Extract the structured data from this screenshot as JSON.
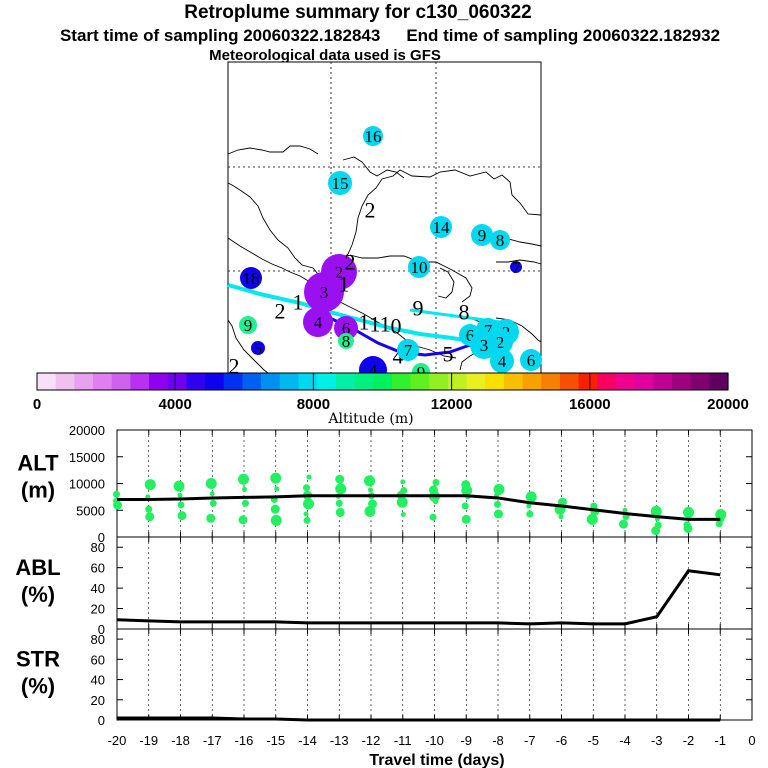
{
  "header": {
    "title": "Retroplume summary for c130_060322",
    "start_label": "Start time of sampling 20060322.182843",
    "end_label": "End time of sampling 20060322.182932",
    "met_label": "Meteorological data used is GFS"
  },
  "colorbar": {
    "ticks": [
      "0",
      "4000",
      "8000",
      "12000",
      "16000",
      "20000"
    ],
    "label": "Altitude (m)",
    "colors": [
      "#f8e0f8",
      "#f0c0f0",
      "#e8a0f0",
      "#e080f0",
      "#d060f0",
      "#b830f0",
      "#9000f0",
      "#7000f0",
      "#3000f0",
      "#1000f0",
      "#0030f0",
      "#0060f0",
      "#0090f0",
      "#00b8f0",
      "#00d8f0",
      "#00f0e8",
      "#00f0a8",
      "#00f080",
      "#00f060",
      "#30f030",
      "#60f020",
      "#90f020",
      "#c0f020",
      "#e8f020",
      "#f8e000",
      "#f8c000",
      "#f8a000",
      "#f88000",
      "#f85000",
      "#f82000",
      "#f80060",
      "#f00090",
      "#e000a0",
      "#c00090",
      "#a00080",
      "#800070",
      "#600060"
    ]
  },
  "map": {
    "labels": [
      {
        "t": "16",
        "k": "cyan"
      },
      {
        "t": "15",
        "k": "cyan"
      },
      {
        "t": "2",
        "k": "none"
      },
      {
        "t": "14",
        "k": "cyan"
      },
      {
        "t": "9",
        "k": "cyan"
      },
      {
        "t": "8",
        "k": "cyan"
      },
      {
        "t": "10",
        "k": "cyan"
      },
      {
        "t": "18",
        "k": "blue"
      },
      {
        "t": "7",
        "k": "blue"
      },
      {
        "t": "2",
        "k": "violet"
      },
      {
        "t": "3",
        "k": "violet"
      },
      {
        "t": "1",
        "k": "none"
      },
      {
        "t": "2",
        "k": "none"
      },
      {
        "t": "1",
        "k": "none"
      },
      {
        "t": "2",
        "k": "none"
      },
      {
        "t": "9",
        "k": "green"
      },
      {
        "t": "4",
        "k": "violet"
      },
      {
        "t": "6",
        "k": "violet"
      },
      {
        "t": "1",
        "k": "none"
      },
      {
        "t": "11",
        "k": "none"
      },
      {
        "t": "0",
        "k": "none"
      },
      {
        "t": "9",
        "k": "none"
      },
      {
        "t": "8",
        "k": "none"
      },
      {
        "t": "5",
        "k": "blue"
      },
      {
        "t": "8",
        "k": "green"
      },
      {
        "t": "2",
        "k": "cyan"
      },
      {
        "t": "7",
        "k": "cyan"
      },
      {
        "t": "4",
        "k": "none"
      },
      {
        "t": "5",
        "k": "none"
      },
      {
        "t": "6",
        "k": "cyan"
      },
      {
        "t": "7",
        "k": "cyan"
      },
      {
        "t": "2",
        "k": "cyan"
      },
      {
        "t": "3",
        "k": "cyan"
      },
      {
        "t": "4",
        "k": "cyan"
      },
      {
        "t": "6",
        "k": "cyan"
      },
      {
        "t": "2",
        "k": "none"
      },
      {
        "t": "4",
        "k": "blue"
      },
      {
        "t": "9",
        "k": "green"
      }
    ]
  },
  "chart_data": [
    {
      "type": "scatter",
      "name": "ALT",
      "ylabel": "ALT\n(m)",
      "ylabel_lines": [
        "ALT",
        "(m)"
      ],
      "ylim": [
        0,
        20000
      ],
      "yticks": [
        "0",
        "5000",
        "10000",
        "15000",
        "20000"
      ],
      "x": [
        -20,
        -19,
        -18,
        -17,
        -16,
        -15,
        -14,
        -13,
        -12,
        -11,
        -10,
        -9,
        -8,
        -7,
        -6,
        -5,
        -4,
        -3,
        -2,
        -1
      ],
      "median": [
        7000,
        7000,
        7100,
        7300,
        7400,
        7500,
        7700,
        7700,
        7700,
        7700,
        7700,
        7700,
        7300,
        6400,
        5800,
        5100,
        4400,
        3800,
        3300,
        3300
      ],
      "scatter_points": [
        [
          -20,
          6800
        ],
        [
          -20,
          8000
        ],
        [
          -20,
          6000
        ],
        [
          -19,
          9800
        ],
        [
          -19,
          7500
        ],
        [
          -19,
          5200
        ],
        [
          -19,
          3800
        ],
        [
          -18,
          9500
        ],
        [
          -18,
          7800
        ],
        [
          -18,
          6000
        ],
        [
          -18,
          4000
        ],
        [
          -17,
          10000
        ],
        [
          -17,
          8100
        ],
        [
          -17,
          6300
        ],
        [
          -17,
          3500
        ],
        [
          -16,
          10800
        ],
        [
          -16,
          8900
        ],
        [
          -16,
          6300
        ],
        [
          -16,
          3200
        ],
        [
          -15,
          11000
        ],
        [
          -15,
          9000
        ],
        [
          -15,
          7000
        ],
        [
          -15,
          5200
        ],
        [
          -15,
          3100
        ],
        [
          -14,
          11200
        ],
        [
          -14,
          9200
        ],
        [
          -14,
          7800
        ],
        [
          -14,
          6200
        ],
        [
          -14,
          4300
        ],
        [
          -14,
          3100
        ],
        [
          -13,
          10800
        ],
        [
          -13,
          9000
        ],
        [
          -13,
          7600
        ],
        [
          -13,
          6300
        ],
        [
          -13,
          4600
        ],
        [
          -12,
          10500
        ],
        [
          -12,
          8800
        ],
        [
          -12,
          7700
        ],
        [
          -12,
          6200
        ],
        [
          -12,
          4800
        ],
        [
          -11,
          10300
        ],
        [
          -11,
          8700
        ],
        [
          -11,
          7800
        ],
        [
          -11,
          6500
        ],
        [
          -11,
          4200
        ],
        [
          -10,
          10200
        ],
        [
          -10,
          8800
        ],
        [
          -10,
          7600
        ],
        [
          -10,
          6600
        ],
        [
          -10,
          3700
        ],
        [
          -9,
          9800
        ],
        [
          -9,
          8700
        ],
        [
          -9,
          7500
        ],
        [
          -9,
          5800
        ],
        [
          -9,
          3300
        ],
        [
          -8,
          8900
        ],
        [
          -8,
          7800
        ],
        [
          -8,
          6100
        ],
        [
          -8,
          4300
        ],
        [
          -7,
          7500
        ],
        [
          -7,
          5800
        ],
        [
          -7,
          4300
        ],
        [
          -6,
          6500
        ],
        [
          -6,
          5200
        ],
        [
          -6,
          3800
        ],
        [
          -5,
          5800
        ],
        [
          -5,
          4800
        ],
        [
          -5,
          3300
        ],
        [
          -4,
          5000
        ],
        [
          -4,
          3800
        ],
        [
          -4,
          2400
        ],
        [
          -3,
          4800
        ],
        [
          -3,
          3400
        ],
        [
          -3,
          2200
        ],
        [
          -3,
          1200
        ],
        [
          -2,
          4600
        ],
        [
          -2,
          3400
        ],
        [
          -2,
          2300
        ],
        [
          -2,
          1600
        ],
        [
          -1,
          4200
        ],
        [
          -1,
          3300
        ],
        [
          -1,
          2500
        ]
      ]
    },
    {
      "type": "line",
      "name": "ABL",
      "ylabel": "ABL\n(%)",
      "ylabel_lines": [
        "ABL",
        "(%)"
      ],
      "ylim": [
        0,
        90
      ],
      "yticks": [
        "0",
        "20",
        "40",
        "60",
        "80"
      ],
      "x": [
        -20,
        -19,
        -18,
        -17,
        -16,
        -15,
        -14,
        -13,
        -12,
        -11,
        -10,
        -9,
        -8,
        -7,
        -6,
        -5,
        -4,
        -3,
        -2,
        -1
      ],
      "values": [
        9,
        8,
        7,
        7,
        7,
        7,
        6,
        6,
        6,
        6,
        6,
        6,
        6,
        5,
        6,
        5,
        5,
        12,
        57,
        53
      ]
    },
    {
      "type": "line",
      "name": "STR",
      "ylabel": "STR\n(%)",
      "ylabel_lines": [
        "STR",
        "(%)"
      ],
      "ylim": [
        0,
        90
      ],
      "yticks": [
        "0",
        "20",
        "40",
        "60",
        "80"
      ],
      "x": [
        -20,
        -19,
        -18,
        -17,
        -16,
        -15,
        -14,
        -13,
        -12,
        -11,
        -10,
        -9,
        -8,
        -7,
        -6,
        -5,
        -4,
        -3,
        -2,
        -1
      ],
      "values": [
        2,
        2,
        2,
        2,
        1,
        1,
        0,
        0,
        0,
        0,
        0,
        0,
        0,
        0,
        0,
        0,
        0,
        0,
        0,
        0
      ]
    }
  ],
  "xaxis": {
    "ticks": [
      "-20",
      "-19",
      "-18",
      "-17",
      "-16",
      "-15",
      "-14",
      "-13",
      "-12",
      "-11",
      "-10",
      "-9",
      "-8",
      "-7",
      "-6",
      "-5",
      "-4",
      "-3",
      "-2",
      "-1",
      "0"
    ],
    "label": "Travel time (days)"
  }
}
